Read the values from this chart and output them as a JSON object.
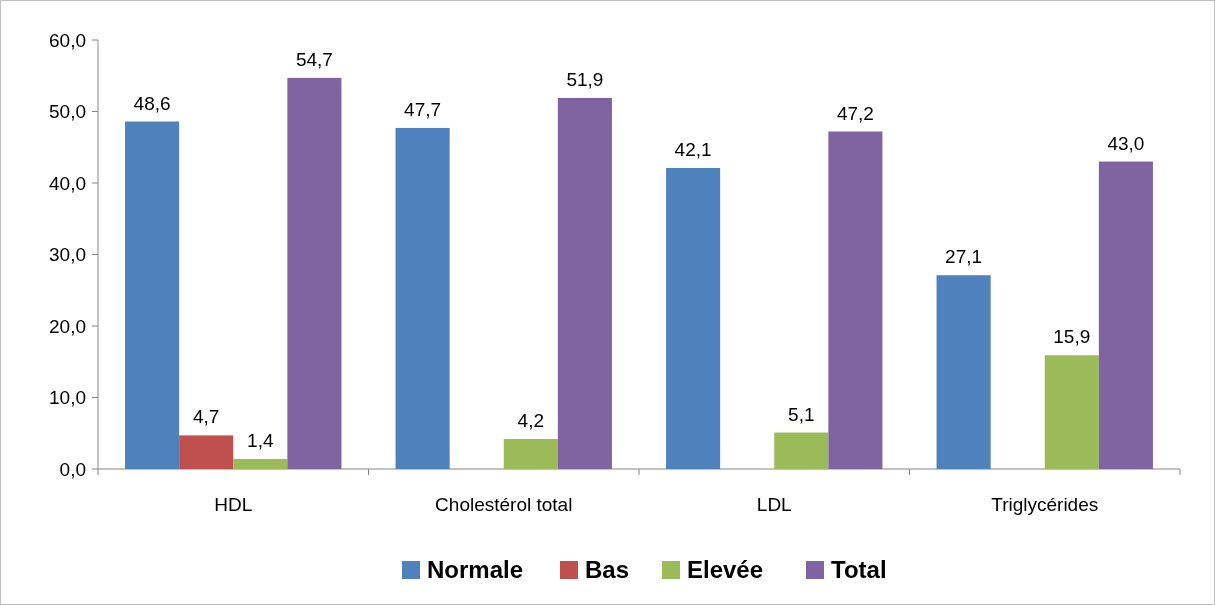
{
  "chart_data": {
    "type": "bar",
    "categories": [
      "HDL",
      "Cholestérol total",
      "LDL",
      "Triglycérides"
    ],
    "series": [
      {
        "name": "Normale",
        "color": "#4f81bd",
        "values": [
          48.6,
          47.7,
          42.1,
          27.1
        ],
        "value_labels": [
          "48,6",
          "47,7",
          "42,1",
          "27,1"
        ]
      },
      {
        "name": "Bas",
        "color": "#c0504d",
        "values": [
          4.7,
          null,
          null,
          null
        ],
        "value_labels": [
          "4,7",
          null,
          null,
          null
        ]
      },
      {
        "name": "Elevée",
        "color": "#9bbb59",
        "values": [
          1.4,
          4.2,
          5.1,
          15.9
        ],
        "value_labels": [
          "1,4",
          "4,2",
          "5,1",
          "15,9"
        ]
      },
      {
        "name": "Total",
        "color": "#8064a2",
        "values": [
          54.7,
          51.9,
          47.2,
          43.0
        ],
        "value_labels": [
          "54,7",
          "51,9",
          "47,2",
          "43,0"
        ]
      }
    ],
    "ylim": [
      0,
      60
    ],
    "yticks": [
      {
        "value": 0,
        "label": "0,0"
      },
      {
        "value": 10,
        "label": "10,0"
      },
      {
        "value": 20,
        "label": "20,0"
      },
      {
        "value": 30,
        "label": "30,0"
      },
      {
        "value": 40,
        "label": "40,0"
      },
      {
        "value": 50,
        "label": "50,0"
      },
      {
        "value": 60,
        "label": "60,0"
      }
    ],
    "grid": false,
    "legend": "bottom"
  }
}
